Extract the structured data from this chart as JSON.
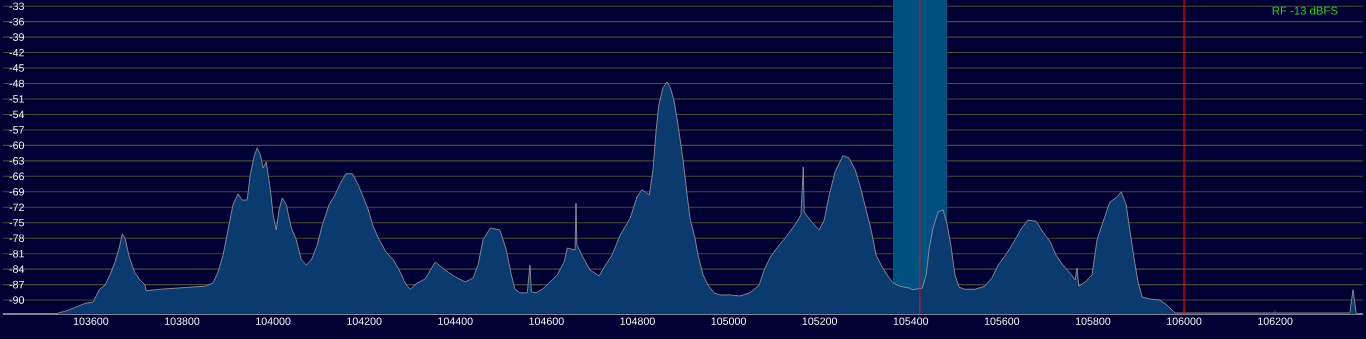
{
  "chart_data": {
    "type": "area",
    "annotations": [
      "RF -13 dBFS"
    ],
    "series": [
      {
        "color": "#0b3a6e",
        "x": [
          103528,
          103546,
          103566,
          103588,
          103605,
          103618,
          103631,
          103642,
          103653,
          103662,
          103669,
          103675,
          103684,
          103697,
          103708,
          103719,
          103721,
          103752,
          103785,
          103818,
          103851,
          103868,
          103879,
          103890,
          103901,
          103912,
          103923,
          103932,
          103943,
          103950,
          103958,
          103965,
          103972,
          103978,
          103985,
          103994,
          104000,
          104007,
          104013,
          104020,
          104029,
          104040,
          104051,
          104062,
          104073,
          104084,
          104097,
          104108,
          104123,
          104136,
          104149,
          104160,
          104174,
          104185,
          104196,
          104209,
          104220,
          104233,
          104248,
          104264,
          104277,
          104290,
          104301,
          104316,
          104334,
          104356,
          104378,
          104400,
          104422,
          104439,
          104450,
          104461,
          104477,
          104498,
          104512,
          104523,
          104531,
          104542,
          104558,
          104564,
          104567,
          104577,
          104591,
          104608,
          104624,
          104639,
          104646,
          104663,
          104665,
          104667,
          104681,
          104696,
          104716,
          104727,
          104744,
          104762,
          104784,
          104799,
          104810,
          104826,
          104834,
          104841,
          104847,
          104856,
          104865,
          104872,
          104880,
          104889,
          104900,
          104909,
          104916,
          104926,
          104933,
          104944,
          104955,
          104968,
          104981,
          105003,
          105025,
          105047,
          105067,
          105078,
          105091,
          105106,
          105124,
          105146,
          105159,
          105164,
          105166,
          105183,
          105199,
          105210,
          105221,
          105234,
          105251,
          105264,
          105278,
          105291,
          105302,
          105313,
          105324,
          105335,
          105348,
          105361,
          105376,
          105398,
          105403,
          105425,
          105434,
          105440,
          105449,
          105460,
          105471,
          105480,
          105488,
          105497,
          105506,
          105519,
          105541,
          105563,
          105578,
          105592,
          105611,
          105629,
          105644,
          105657,
          105675,
          105690,
          105706,
          105719,
          105734,
          105750,
          105761,
          105765,
          105769,
          105783,
          105798,
          105809,
          105822,
          105837,
          105853,
          105862,
          105873,
          105881,
          105890,
          105899,
          105908,
          105925,
          105947,
          105963,
          105980,
          106364,
          106371,
          106378
        ],
        "values": [
          -92.5,
          -92.1,
          -91.4,
          -90.6,
          -90.4,
          -88.0,
          -87.1,
          -85.1,
          -82.6,
          -79.9,
          -77.2,
          -78.0,
          -81.6,
          -84.8,
          -86.1,
          -87.1,
          -88.2,
          -87.9,
          -87.7,
          -87.5,
          -87.3,
          -86.7,
          -84.6,
          -81.3,
          -76.4,
          -71.5,
          -69.4,
          -70.6,
          -70.6,
          -65.7,
          -62.2,
          -60.5,
          -61.8,
          -64.4,
          -63.2,
          -68.6,
          -73.5,
          -76.4,
          -72.5,
          -70.2,
          -71.5,
          -76.0,
          -78.3,
          -82.2,
          -83.2,
          -82.2,
          -79.3,
          -75.4,
          -71.5,
          -69.6,
          -67.1,
          -65.5,
          -65.5,
          -67.3,
          -69.6,
          -72.5,
          -75.8,
          -78.3,
          -80.7,
          -82.2,
          -84.2,
          -86.7,
          -87.9,
          -86.7,
          -85.9,
          -82.6,
          -84.2,
          -85.5,
          -86.5,
          -85.7,
          -83.2,
          -78.3,
          -76.0,
          -76.4,
          -80.3,
          -85.1,
          -87.9,
          -88.6,
          -88.6,
          -83.2,
          -88.4,
          -88.6,
          -87.9,
          -86.5,
          -85.1,
          -82.6,
          -79.9,
          -80.3,
          -71.2,
          -79.3,
          -81.8,
          -84.2,
          -85.3,
          -83.6,
          -81.3,
          -77.4,
          -74.1,
          -70.0,
          -68.6,
          -69.6,
          -64.7,
          -57.0,
          -52.1,
          -48.8,
          -47.7,
          -48.8,
          -51.2,
          -56.0,
          -62.8,
          -69.6,
          -74.5,
          -77.8,
          -81.3,
          -85.1,
          -87.1,
          -88.6,
          -89.0,
          -89.0,
          -89.2,
          -88.6,
          -87.1,
          -84.2,
          -81.8,
          -79.9,
          -78.0,
          -75.4,
          -73.5,
          -64.2,
          -72.9,
          -74.9,
          -76.4,
          -74.5,
          -69.6,
          -65.1,
          -62.0,
          -62.4,
          -64.7,
          -68.6,
          -72.5,
          -76.4,
          -81.3,
          -83.2,
          -85.1,
          -86.7,
          -87.3,
          -87.7,
          -88.0,
          -87.7,
          -85.1,
          -80.3,
          -76.0,
          -72.9,
          -72.5,
          -75.4,
          -79.3,
          -85.1,
          -87.5,
          -87.9,
          -87.9,
          -87.3,
          -85.7,
          -83.2,
          -80.9,
          -78.3,
          -76.0,
          -74.5,
          -74.7,
          -76.8,
          -78.7,
          -81.3,
          -83.2,
          -84.8,
          -86.1,
          -83.8,
          -87.3,
          -86.5,
          -85.1,
          -78.3,
          -74.9,
          -71.0,
          -70.0,
          -69.0,
          -71.5,
          -76.4,
          -81.8,
          -86.5,
          -89.4,
          -89.8,
          -90.0,
          -91.0,
          -92.5,
          -92.5,
          -88.0,
          -92.5
        ]
      }
    ],
    "xlim": [
      103407,
      106393
    ],
    "ylim": [
      -92.7,
      -31.8
    ],
    "xticks": [
      103600,
      103800,
      104000,
      104200,
      104400,
      104600,
      104800,
      105000,
      105200,
      105400,
      105600,
      105800,
      106000,
      106200
    ],
    "yticks": [
      -33,
      -36,
      -39,
      -42,
      -45,
      -48,
      -51,
      -54,
      -57,
      -60,
      -63,
      -66,
      -69,
      -72,
      -75,
      -78,
      -81,
      -84,
      -87,
      -90
    ],
    "grid": "y",
    "bands": [
      {
        "axis": "x",
        "from": 105361,
        "to": 105480,
        "color": "#005080"
      }
    ],
    "ref_lines": [
      {
        "axis": "x",
        "value": 105420,
        "color": "#ff0000"
      },
      {
        "axis": "x",
        "value": 106000,
        "color": "#ff0000"
      }
    ]
  }
}
